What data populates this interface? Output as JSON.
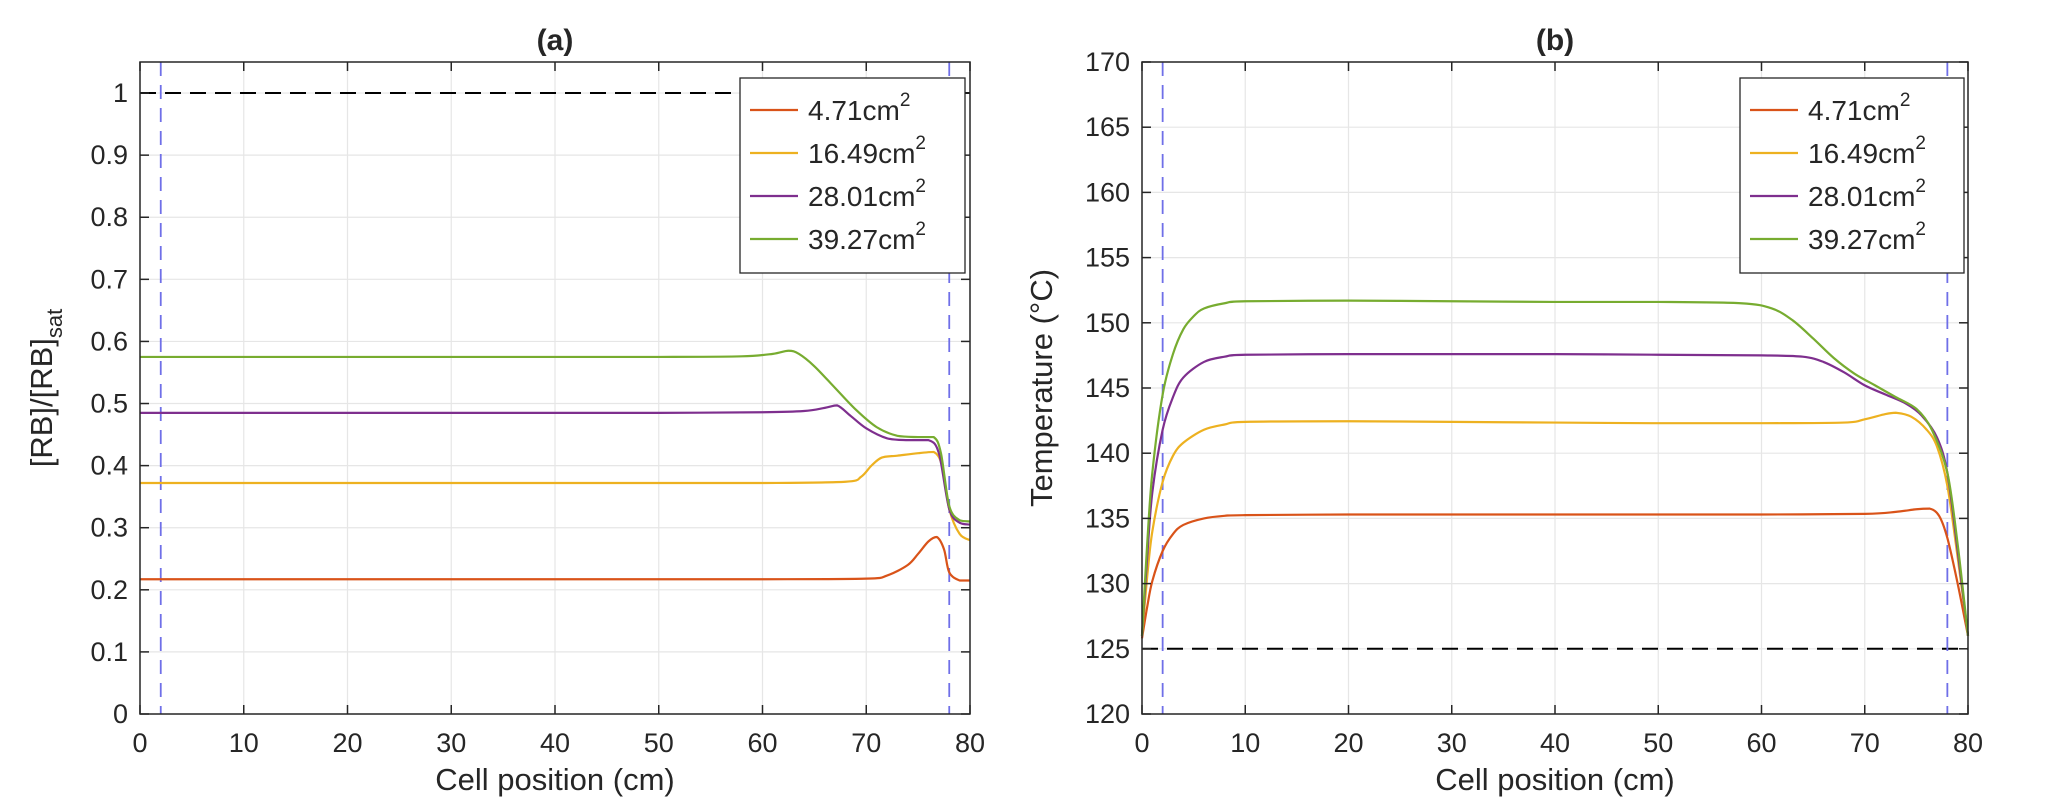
{
  "chart_data": [
    {
      "type": "line",
      "title": "(a)",
      "xlabel": "Cell position (cm)",
      "ylabel_main": "[RB]/[RB]",
      "ylabel_sub": "sat",
      "xlim": [
        0,
        80
      ],
      "ylim": [
        0,
        1.05
      ],
      "xticks": [
        0,
        10,
        20,
        30,
        40,
        50,
        60,
        70,
        80
      ],
      "yticks": [
        0,
        0.1,
        0.2,
        0.3,
        0.4,
        0.5,
        0.6,
        0.7,
        0.8,
        0.9,
        1
      ],
      "ytick_labels": [
        "0",
        "0.1",
        "0.2",
        "0.3",
        "0.4",
        "0.5",
        "0.6",
        "0.7",
        "0.8",
        "0.9",
        "1"
      ],
      "grid": true,
      "legend_position": "top-right",
      "reference_lines": [
        {
          "orientation": "horizontal",
          "value": 1,
          "color": "#000000"
        },
        {
          "orientation": "vertical",
          "value": 2,
          "color": "#6f6fe8"
        },
        {
          "orientation": "vertical",
          "value": 78,
          "color": "#6f6fe8"
        }
      ],
      "series": [
        {
          "name": "4.71cm",
          "unit_sup": "2",
          "color": "#d95319",
          "x": [
            0,
            10,
            20,
            30,
            40,
            50,
            60,
            70,
            72,
            74,
            75,
            76,
            76.8,
            77.5,
            78,
            79,
            80
          ],
          "y": [
            0.217,
            0.217,
            0.217,
            0.217,
            0.217,
            0.217,
            0.217,
            0.218,
            0.223,
            0.24,
            0.258,
            0.278,
            0.285,
            0.265,
            0.228,
            0.215,
            0.215
          ]
        },
        {
          "name": "16.49cm",
          "unit_sup": "2",
          "color": "#edb120",
          "x": [
            0,
            10,
            20,
            30,
            40,
            50,
            60,
            68,
            69.5,
            70.5,
            71.5,
            73,
            75,
            76.5,
            77.3,
            78,
            79,
            80
          ],
          "y": [
            0.372,
            0.372,
            0.372,
            0.372,
            0.372,
            0.372,
            0.372,
            0.374,
            0.382,
            0.4,
            0.413,
            0.416,
            0.42,
            0.422,
            0.4,
            0.33,
            0.29,
            0.28
          ]
        },
        {
          "name": "28.01cm",
          "unit_sup": "2",
          "color": "#7e2f8e",
          "x": [
            0,
            10,
            20,
            30,
            40,
            50,
            60,
            64,
            66,
            67.2,
            68.5,
            70,
            72,
            74,
            76,
            77,
            78,
            79,
            80
          ],
          "y": [
            0.485,
            0.485,
            0.485,
            0.485,
            0.485,
            0.485,
            0.486,
            0.488,
            0.493,
            0.497,
            0.48,
            0.46,
            0.444,
            0.441,
            0.441,
            0.42,
            0.33,
            0.308,
            0.305
          ]
        },
        {
          "name": "39.27cm",
          "unit_sup": "2",
          "color": "#77ac30",
          "x": [
            0,
            10,
            20,
            30,
            40,
            50,
            58,
            61,
            62.5,
            63.5,
            65,
            67,
            69,
            71,
            73,
            75,
            76.5,
            77.2,
            78,
            79,
            80
          ],
          "y": [
            0.575,
            0.575,
            0.575,
            0.575,
            0.575,
            0.575,
            0.576,
            0.58,
            0.585,
            0.58,
            0.56,
            0.525,
            0.49,
            0.462,
            0.448,
            0.446,
            0.446,
            0.42,
            0.335,
            0.312,
            0.31
          ]
        }
      ]
    },
    {
      "type": "line",
      "title": "(b)",
      "xlabel": "Cell position (cm)",
      "ylabel": "Temperature (°C)",
      "xlim": [
        0,
        80
      ],
      "ylim": [
        120,
        170
      ],
      "xticks": [
        0,
        10,
        20,
        30,
        40,
        50,
        60,
        70,
        80
      ],
      "yticks": [
        120,
        125,
        130,
        135,
        140,
        145,
        150,
        155,
        160,
        165,
        170
      ],
      "ytick_labels": [
        "120",
        "125",
        "130",
        "135",
        "140",
        "145",
        "150",
        "155",
        "160",
        "165",
        "170"
      ],
      "grid": true,
      "legend_position": "top-right",
      "reference_lines": [
        {
          "orientation": "horizontal",
          "value": 125,
          "color": "#000000"
        },
        {
          "orientation": "vertical",
          "value": 2,
          "color": "#6f6fe8"
        },
        {
          "orientation": "vertical",
          "value": 78,
          "color": "#6f6fe8"
        }
      ],
      "series": [
        {
          "name": "4.71cm",
          "unit_sup": "2",
          "color": "#d95319",
          "x": [
            0,
            0.5,
            1,
            2,
            3,
            4,
            6,
            8,
            10,
            20,
            30,
            40,
            50,
            60,
            70,
            73,
            75,
            76.3,
            77.2,
            78,
            79,
            80
          ],
          "y": [
            125.8,
            128.2,
            130.2,
            132.5,
            133.8,
            134.5,
            135.0,
            135.2,
            135.25,
            135.3,
            135.3,
            135.3,
            135.3,
            135.3,
            135.35,
            135.5,
            135.7,
            135.75,
            135.2,
            133.5,
            130.0,
            126.0
          ]
        },
        {
          "name": "16.49cm",
          "unit_sup": "2",
          "color": "#edb120",
          "x": [
            0,
            0.5,
            1,
            2,
            3,
            4,
            6,
            8,
            10,
            20,
            30,
            40,
            50,
            60,
            68,
            70,
            72,
            73,
            74.5,
            76,
            77,
            78,
            79,
            80
          ],
          "y": [
            126.0,
            130.5,
            134.0,
            137.8,
            139.8,
            140.8,
            141.8,
            142.2,
            142.4,
            142.45,
            142.4,
            142.35,
            142.3,
            142.3,
            142.35,
            142.6,
            143.0,
            143.1,
            142.8,
            141.8,
            140.5,
            137.5,
            132.0,
            126.0
          ]
        },
        {
          "name": "28.01cm",
          "unit_sup": "2",
          "color": "#7e2f8e",
          "x": [
            0,
            0.5,
            1,
            2,
            3,
            4,
            6,
            8,
            10,
            20,
            30,
            40,
            50,
            60,
            64,
            66,
            68,
            70,
            72,
            74,
            75.5,
            77,
            78,
            79,
            80
          ],
          "y": [
            126.0,
            132.0,
            137.0,
            141.8,
            144.3,
            145.8,
            147.0,
            147.4,
            147.55,
            147.6,
            147.6,
            147.6,
            147.55,
            147.5,
            147.4,
            147.0,
            146.2,
            145.2,
            144.5,
            143.8,
            142.9,
            141.2,
            138.5,
            132.5,
            126.0
          ]
        },
        {
          "name": "39.27cm",
          "unit_sup": "2",
          "color": "#77ac30",
          "x": [
            0,
            0.5,
            1,
            2,
            3,
            4,
            5,
            6,
            8,
            10,
            20,
            30,
            40,
            50,
            58,
            61,
            63,
            65,
            67,
            69,
            71,
            73,
            75,
            76.5,
            78,
            79,
            80
          ],
          "y": [
            126.0,
            133.0,
            138.5,
            144.5,
            147.6,
            149.5,
            150.5,
            151.1,
            151.5,
            151.65,
            151.7,
            151.65,
            151.6,
            151.6,
            151.5,
            151.1,
            150.2,
            148.8,
            147.3,
            146.1,
            145.2,
            144.3,
            143.4,
            141.8,
            138.5,
            133.0,
            126.0
          ]
        }
      ]
    }
  ]
}
